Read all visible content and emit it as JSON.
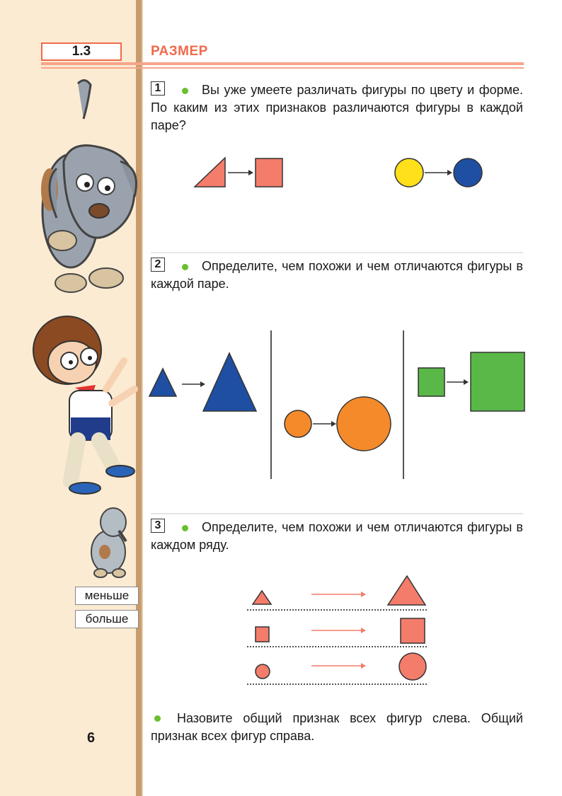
{
  "header": {
    "section_number": "1.3",
    "section_title": "РАЗМЕР"
  },
  "tasks": [
    {
      "number": "1",
      "text": "Вы уже умеете различать фигуры по цвету и форме. По каким из этих признаков различаются фигуры в каждой паре?"
    },
    {
      "number": "2",
      "text": "Определите, чем похожи и чем отличаются фигуры в каждой паре."
    },
    {
      "number": "3",
      "text": "Определите, чем похожи и чем отличаются фигуры в каждом ряду."
    }
  ],
  "final_task": {
    "text": "Назовите общий признак всех фигур слева. Общий признак всех фигур справа."
  },
  "margin_words": {
    "smaller": "меньше",
    "bigger": "больше"
  },
  "page_number": "6",
  "colors": {
    "salmon": "#f47c6a",
    "yellow": "#ffe01a",
    "blue": "#1f4fa3",
    "orange": "#f58a2b",
    "green": "#5ab848",
    "accent": "#ef6a4c",
    "bullet": "#6abf2e",
    "margin_bg": "#fcebd3"
  },
  "icons": [
    "dog-illustration",
    "boy-illustration",
    "puppy-illustration"
  ]
}
